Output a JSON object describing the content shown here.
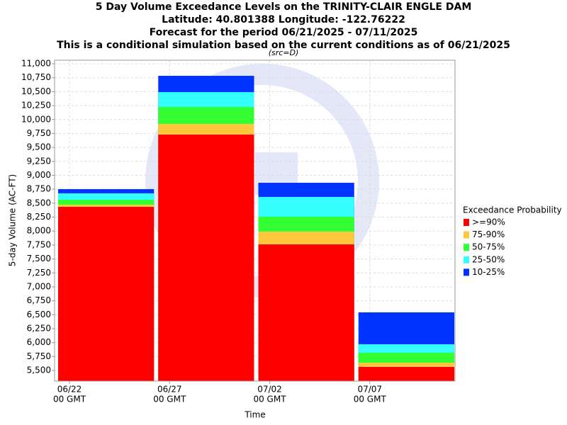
{
  "chart_data": {
    "type": "overlap_bar",
    "title": [
      "5 Day Volume Exceedance Levels on the TRINITY-CLAIR ENGLE DAM",
      "Latitude: 40.801388 Longitude: -122.76222",
      "Forecast for the period 06/21/2025 - 07/11/2025",
      "This is a conditional simulation based on the current conditions as of 06/21/2025"
    ],
    "subtitle": "(src=D)",
    "ylabel": "5-day Volume (AC-FT)",
    "xlabel": "Time",
    "categories": [
      null,
      null,
      null,
      null
    ],
    "x_tick_labels": [
      [
        "06/22",
        "00 GMT"
      ],
      [
        "06/27",
        "00 GMT"
      ],
      [
        "07/02",
        "00 GMT"
      ],
      [
        "07/07",
        "00 GMT"
      ]
    ],
    "legend_title": "Exceedance Probability",
    "legend": "right",
    "grid": true,
    "series": [
      {
        "name": ">=90%",
        "color": "#ff0000",
        "values": [
          8434,
          9730,
          7761,
          5564
        ]
      },
      {
        "name": "75-90%",
        "color": "#ffc83c",
        "values": [
          8472,
          9920,
          7990,
          5640
        ]
      },
      {
        "name": "50-75%",
        "color": "#33ff33",
        "values": [
          8561,
          10225,
          8257,
          5818
        ]
      },
      {
        "name": "25-50%",
        "color": "#33ffff",
        "values": [
          8676,
          10492,
          8612,
          5970
        ]
      },
      {
        "name": "10-25%",
        "color": "#0033ff",
        "values": [
          8752,
          10784,
          8866,
          6542
        ]
      }
    ],
    "ylim": [
      5310,
      11064
    ],
    "yticks": [
      {
        "value": 5500,
        "label": "5,500"
      },
      {
        "value": 5750,
        "label": "5,750"
      },
      {
        "value": 6000,
        "label": "6,000"
      },
      {
        "value": 6250,
        "label": "6,250"
      },
      {
        "value": 6500,
        "label": "6,500"
      },
      {
        "value": 6750,
        "label": "6,750"
      },
      {
        "value": 7000,
        "label": "7,000"
      },
      {
        "value": 7250,
        "label": "7,250"
      },
      {
        "value": 7500,
        "label": "7,500"
      },
      {
        "value": 7750,
        "label": "7,750"
      },
      {
        "value": 8000,
        "label": "8,000"
      },
      {
        "value": 8250,
        "label": "8,250"
      },
      {
        "value": 8500,
        "label": "8,500"
      },
      {
        "value": 8750,
        "label": "8,750"
      },
      {
        "value": 9000,
        "label": "9,000"
      },
      {
        "value": 9250,
        "label": "9,250"
      },
      {
        "value": 9500,
        "label": "9,500"
      },
      {
        "value": 9750,
        "label": "9,750"
      },
      {
        "value": 10000,
        "label": "10,000"
      },
      {
        "value": 10250,
        "label": "10,250"
      },
      {
        "value": 10500,
        "label": "10,500"
      },
      {
        "value": 10750,
        "label": "10,750"
      },
      {
        "value": 11000,
        "label": "11,000"
      }
    ]
  }
}
